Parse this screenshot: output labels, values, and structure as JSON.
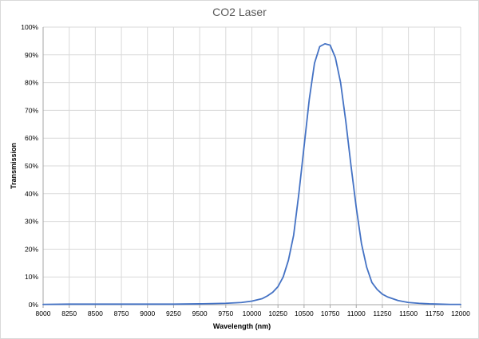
{
  "chart_data": {
    "type": "line",
    "title": "CO2 Laser",
    "xlabel": "Wavelength (nm)",
    "ylabel": "Transmission",
    "xlim": [
      8000,
      12000
    ],
    "ylim": [
      0,
      100
    ],
    "x_ticks": [
      "8000",
      "8250",
      "8500",
      "8750",
      "9000",
      "9250",
      "9500",
      "9750",
      "10000",
      "10250",
      "10500",
      "10750",
      "11000",
      "11250",
      "11500",
      "11750",
      "12000"
    ],
    "y_ticks": [
      "0%",
      "10%",
      "20%",
      "30%",
      "40%",
      "50%",
      "60%",
      "70%",
      "80%",
      "90%",
      "100%"
    ],
    "grid": true,
    "legend": "none",
    "colors": {
      "series": "#4472c4",
      "grid": "#d9d9d9",
      "axis": "#a6a6a6"
    },
    "series": [
      {
        "x": [
          8000,
          8250,
          8500,
          8750,
          9000,
          9250,
          9500,
          9750,
          9900,
          10000,
          10100,
          10150,
          10200,
          10250,
          10300,
          10350,
          10400,
          10450,
          10500,
          10550,
          10600,
          10650,
          10700,
          10750,
          10800,
          10850,
          10900,
          10950,
          11000,
          11050,
          11100,
          11150,
          11200,
          11250,
          11300,
          11400,
          11500,
          11600,
          11700,
          11800,
          11900,
          12000
        ],
        "y": [
          0.1,
          0.2,
          0.2,
          0.2,
          0.2,
          0.2,
          0.3,
          0.5,
          0.8,
          1.3,
          2.2,
          3.2,
          4.5,
          6.5,
          10.0,
          16.0,
          25.0,
          40.0,
          57.0,
          74.0,
          87.0,
          93.0,
          94.0,
          93.5,
          89.0,
          80.0,
          66.0,
          50.0,
          35.0,
          22.0,
          13.5,
          8.0,
          5.5,
          3.8,
          2.8,
          1.5,
          0.8,
          0.5,
          0.3,
          0.2,
          0.1,
          0.1
        ]
      }
    ]
  }
}
